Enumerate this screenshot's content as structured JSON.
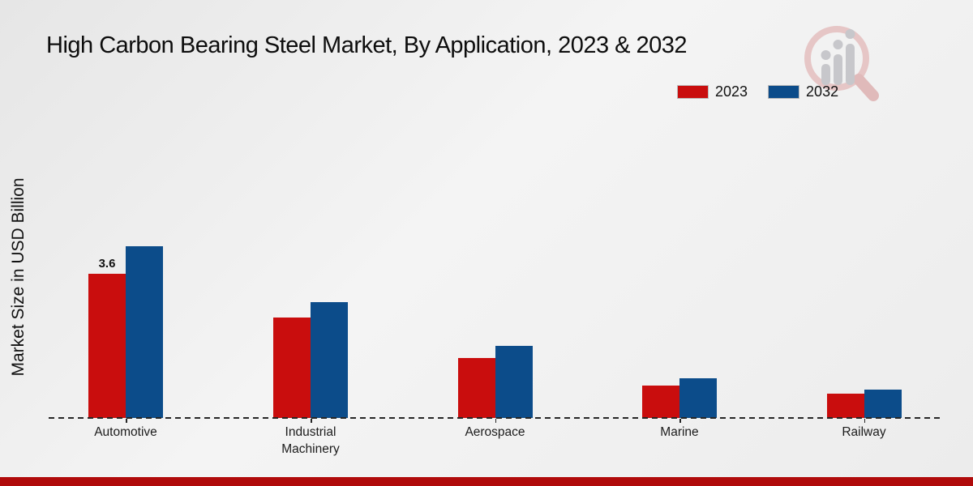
{
  "title": "High Carbon Bearing Steel Market, By Application, 2023 & 2032",
  "ylabel": "Market Size in USD Billion",
  "legend": [
    {
      "label": "2023",
      "color": "#c90d0d"
    },
    {
      "label": "2032",
      "color": "#0c4c8a"
    }
  ],
  "chart_data": {
    "type": "bar",
    "title": "High Carbon Bearing Steel Market, By Application, 2023 & 2032",
    "categories": [
      "Automotive",
      "Industrial Machinery",
      "Aerospace",
      "Marine",
      "Railway"
    ],
    "series": [
      {
        "name": "2023",
        "color": "#c90d0d",
        "values": [
          3.6,
          2.5,
          1.5,
          0.8,
          0.6
        ]
      },
      {
        "name": "2032",
        "color": "#0c4c8a",
        "values": [
          4.3,
          2.9,
          1.8,
          1.0,
          0.7
        ]
      }
    ],
    "annotations": [
      {
        "category": "Automotive",
        "series": "2023",
        "text": "3.6"
      }
    ],
    "xlabel": "",
    "ylabel": "Market Size in USD Billion",
    "ylim": [
      0,
      5
    ],
    "grid": false,
    "baseline_style": "dashed",
    "legend_position": "top-right"
  },
  "colors": {
    "series_2023": "#c90d0d",
    "series_2032": "#0c4c8a",
    "footer_bar": "#b00b0b",
    "background": "#efefef",
    "watermark_pink": "#e6c6c6",
    "watermark_gray": "#c7c7cb"
  },
  "watermark": "market-research-magnifier-logo"
}
